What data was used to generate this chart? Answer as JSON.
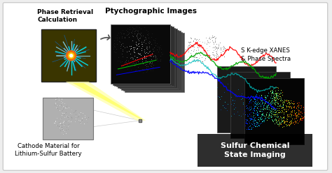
{
  "bg_color": "#eeeeee",
  "border_color": "#bbbbbb",
  "title": "Ptychographic Images",
  "label_phase": "Phase Retrieval\nCalculation",
  "label_cathode": "Cathode Material for\nLithium-Sulfur Battery",
  "label_xanes": "S K-edge XANES\n& Phase Spectra",
  "label_sulfur": "Sulfur Chemical\nState Imaging",
  "arrow_color": "#555555",
  "diffraction_bg": "#3a3500",
  "beam_color": "#ffff88",
  "ptychograph_bg": "#111111"
}
